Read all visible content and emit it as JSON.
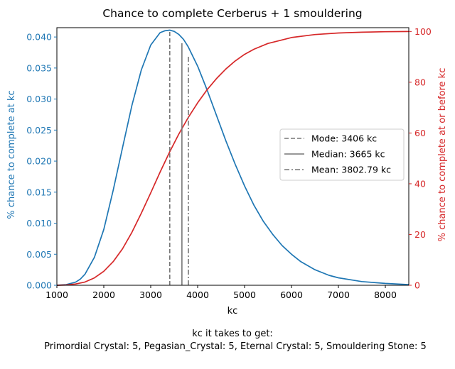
{
  "chart_data": {
    "type": "line",
    "title": "Chance to complete Cerberus + 1 smouldering",
    "xlabel": "kc",
    "ylabel_left": "% chance to complete at kc",
    "ylabel_right": "% chance to complete at or before kc",
    "xlim": [
      1000,
      8500
    ],
    "ylim_left": [
      0,
      0.0415
    ],
    "ylim_right": [
      0,
      101.5
    ],
    "x_ticks": [
      1000,
      2000,
      3000,
      4000,
      5000,
      6000,
      7000,
      8000
    ],
    "y_left_ticks": [
      "0.000",
      "0.005",
      "0.010",
      "0.015",
      "0.020",
      "0.025",
      "0.030",
      "0.035",
      "0.040"
    ],
    "y_right_ticks": [
      0,
      20,
      40,
      60,
      80,
      100
    ],
    "grid": false,
    "legend_position": "center-right",
    "series": [
      {
        "name": "% chance to complete at kc",
        "axis": "left",
        "color": "#1f77b4",
        "x": [
          1000,
          1200,
          1400,
          1500,
          1600,
          1800,
          2000,
          2200,
          2400,
          2600,
          2800,
          3000,
          3200,
          3300,
          3406,
          3500,
          3600,
          3700,
          3800,
          4000,
          4200,
          4400,
          4600,
          4800,
          5000,
          5200,
          5400,
          5600,
          5800,
          6000,
          6200,
          6500,
          6800,
          7000,
          7500,
          8000,
          8500
        ],
        "values": [
          0.0,
          0.0001,
          0.0005,
          0.001,
          0.0018,
          0.0045,
          0.009,
          0.0153,
          0.0222,
          0.029,
          0.0347,
          0.0387,
          0.0407,
          0.041,
          0.0411,
          0.0409,
          0.0404,
          0.0396,
          0.0384,
          0.0353,
          0.0315,
          0.0274,
          0.0233,
          0.0195,
          0.016,
          0.0129,
          0.0103,
          0.0082,
          0.0064,
          0.005,
          0.0038,
          0.0025,
          0.0016,
          0.0012,
          0.0006,
          0.0003,
          0.0001
        ]
      },
      {
        "name": "% chance to complete at or before kc",
        "axis": "right",
        "color": "#d62728",
        "x": [
          1000,
          1200,
          1400,
          1600,
          1800,
          2000,
          2200,
          2400,
          2600,
          2800,
          3000,
          3200,
          3400,
          3600,
          3800,
          4000,
          4200,
          4400,
          4600,
          4800,
          5000,
          5200,
          5500,
          6000,
          6500,
          7000,
          7500,
          8000,
          8500
        ],
        "values": [
          0.0,
          0.1,
          0.5,
          1.3,
          2.9,
          5.5,
          9.3,
          14.4,
          20.9,
          28.4,
          36.4,
          44.6,
          52.4,
          59.6,
          66.1,
          71.9,
          77.0,
          81.4,
          85.2,
          88.4,
          91.0,
          93.0,
          95.3,
          97.6,
          98.8,
          99.4,
          99.7,
          99.9,
          100.0
        ]
      }
    ],
    "reference_lines": [
      {
        "label": "Mode: 3406 kc",
        "x": 3406,
        "style": "dashed",
        "color": "#777777"
      },
      {
        "label": "Median: 3665 kc",
        "x": 3665,
        "style": "solid",
        "color": "#777777"
      },
      {
        "label": "Mean: 3802.79 kc",
        "x": 3802.79,
        "style": "dashdot",
        "color": "#777777"
      }
    ],
    "footer_line1": "kc it takes to get:",
    "footer_line2": "Primordial Crystal: 5,  Pegasian_Crystal: 5,  Eternal Crystal: 5,  Smouldering Stone: 5"
  }
}
